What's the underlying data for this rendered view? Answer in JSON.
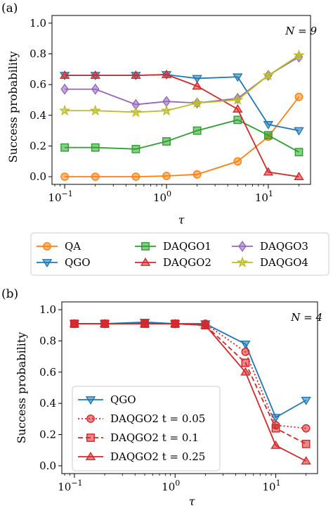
{
  "panels": [
    {
      "label": "(a)",
      "annotation": "N = 9",
      "chart_data": {
        "type": "line",
        "xscale": "log",
        "x": [
          0.1,
          0.2,
          0.5,
          1,
          2,
          5,
          10,
          20
        ],
        "xlim": [
          0.075,
          26
        ],
        "ylim": [
          -0.05,
          1.05
        ],
        "xlabel": "τ",
        "ylabel": "Success probability",
        "xticks": [
          {
            "value": 0.1,
            "base": "10",
            "exp": "−1"
          },
          {
            "value": 1,
            "base": "10",
            "exp": "0"
          },
          {
            "value": 10,
            "base": "10",
            "exp": "1"
          }
        ],
        "yticks": [
          0.0,
          0.2,
          0.4,
          0.6,
          0.8,
          1.0
        ],
        "ytick_labels": [
          "0.0",
          "0.2",
          "0.4",
          "0.6",
          "0.8",
          "1.0"
        ],
        "legend_placement": "below",
        "series": [
          {
            "name": "QA",
            "color": "#ff7f0e",
            "marker": "circle",
            "dash": "",
            "values": [
              0.0,
              0.0,
              0.0,
              0.005,
              0.015,
              0.1,
              0.26,
              0.52
            ]
          },
          {
            "name": "QGO",
            "color": "#1f77b4",
            "marker": "triangle-down",
            "dash": "",
            "values": [
              0.66,
              0.66,
              0.66,
              0.665,
              0.64,
              0.65,
              0.34,
              0.3
            ]
          },
          {
            "name": "DAQGO1",
            "color": "#2ca02c",
            "marker": "square",
            "dash": "",
            "values": [
              0.19,
              0.19,
              0.18,
              0.23,
              0.3,
              0.37,
              0.27,
              0.16
            ]
          },
          {
            "name": "DAQGO2",
            "color": "#d62728",
            "marker": "triangle-up",
            "dash": "",
            "values": [
              0.66,
              0.66,
              0.66,
              0.665,
              0.59,
              0.44,
              0.03,
              0.0
            ]
          },
          {
            "name": "DAQGO3",
            "color": "#9467bd",
            "marker": "diamond",
            "dash": "",
            "values": [
              0.57,
              0.57,
              0.47,
              0.49,
              0.48,
              0.51,
              0.66,
              0.78
            ]
          },
          {
            "name": "DAQGO4",
            "color": "#bcbd22",
            "marker": "star",
            "dash": "",
            "values": [
              0.43,
              0.43,
              0.42,
              0.43,
              0.48,
              0.5,
              0.66,
              0.79
            ]
          }
        ]
      }
    },
    {
      "label": "(b)",
      "annotation": "N = 4",
      "chart_data": {
        "type": "line",
        "xscale": "log",
        "x": [
          0.1,
          0.2,
          0.5,
          1,
          2,
          5,
          10,
          20
        ],
        "xlim": [
          0.075,
          26
        ],
        "ylim": [
          -0.05,
          1.05
        ],
        "xlabel": "τ",
        "ylabel": "Success probability",
        "xticks": [
          {
            "value": 0.1,
            "base": "10",
            "exp": "−1"
          },
          {
            "value": 1,
            "base": "10",
            "exp": "0"
          },
          {
            "value": 10,
            "base": "10",
            "exp": "1"
          }
        ],
        "yticks": [
          0.0,
          0.2,
          0.4,
          0.6,
          0.8,
          1.0
        ],
        "ytick_labels": [
          "0.0",
          "0.2",
          "0.4",
          "0.6",
          "0.8",
          "1.0"
        ],
        "legend_placement": "lower-left",
        "series": [
          {
            "name": "QGO",
            "color": "#1f77b4",
            "marker": "triangle-down",
            "dash": "",
            "values": [
              0.91,
              0.91,
              0.92,
              0.91,
              0.91,
              0.78,
              0.31,
              0.42
            ]
          },
          {
            "name": "DAQGO2 t = 0.05",
            "color": "#d62728",
            "marker": "circle",
            "dash": "2,3",
            "values": [
              0.91,
              0.91,
              0.91,
              0.91,
              0.91,
              0.73,
              0.26,
              0.24
            ]
          },
          {
            "name": "DAQGO2 t = 0.1",
            "color": "#d62728",
            "marker": "square",
            "dash": "7,4",
            "values": [
              0.91,
              0.91,
              0.91,
              0.91,
              0.9,
              0.66,
              0.24,
              0.14
            ]
          },
          {
            "name": "DAQGO2 t = 0.25",
            "color": "#d62728",
            "marker": "triangle-up",
            "dash": "",
            "values": [
              0.91,
              0.91,
              0.91,
              0.91,
              0.9,
              0.6,
              0.13,
              0.03
            ]
          }
        ]
      }
    }
  ]
}
